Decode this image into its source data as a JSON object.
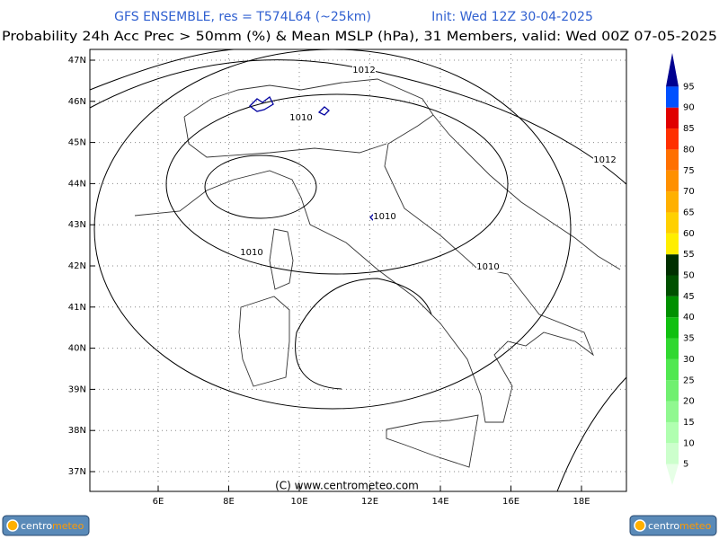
{
  "header": {
    "model": "GFS ENSEMBLE, res = T574L64 (~25km)",
    "init": "Init: Wed 12Z 30-04-2025",
    "subtitle": "Probability 24h Acc Prec > 50mm (%) & Mean MSLP (hPa), 31 Members, valid: Wed 00Z 07-05-2025"
  },
  "map": {
    "lat_labels": [
      "47N",
      "46N",
      "45N",
      "44N",
      "43N",
      "42N",
      "41N",
      "40N",
      "39N",
      "38N",
      "37N"
    ],
    "lon_labels": [
      "6E",
      "8E",
      "10E",
      "12E",
      "14E",
      "16E",
      "18E"
    ],
    "contour_labels": [
      "1012",
      "1010",
      "1012",
      "1010",
      "1010",
      "1010"
    ],
    "copyright": "(C) www.centrometeo.com"
  },
  "colorbar": {
    "labels": [
      "5",
      "10",
      "15",
      "20",
      "25",
      "30",
      "35",
      "40",
      "45",
      "50",
      "55",
      "60",
      "65",
      "70",
      "75",
      "80",
      "85",
      "90",
      "95"
    ],
    "colors": [
      "#e6ffe6",
      "#ccffcc",
      "#b0ffb0",
      "#90f890",
      "#70f070",
      "#50e850",
      "#30d830",
      "#10c010",
      "#009000",
      "#005000",
      "#003000",
      "#ffee00",
      "#ffd000",
      "#ffb000",
      "#ff9000",
      "#ff7000",
      "#ff3000",
      "#e00000",
      "#0050ff",
      "#000090"
    ]
  },
  "logos": [
    {
      "left": "centro",
      "right": "meteo"
    },
    {
      "left": "centro",
      "right": "meteo"
    }
  ]
}
